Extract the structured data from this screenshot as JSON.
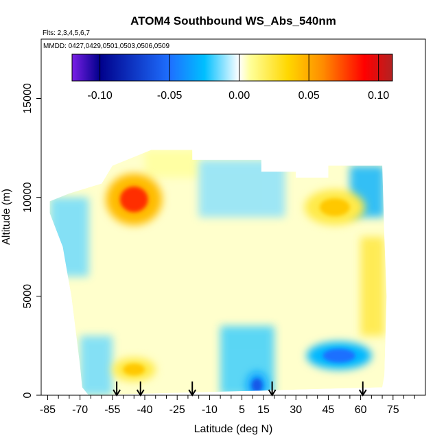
{
  "chart_data": {
    "type": "heatmap",
    "title": "ATOM4 Southbound WS_Abs_540nm",
    "subtitle_flights": "Flts: 2,3,4,5,6,7",
    "subtitle_dates": "MMDD: 0427,0429,0501,0503,0506,0509",
    "xlabel": "Latitude (deg N)",
    "ylabel": "Altitude (m)",
    "xlim": [
      -88,
      90
    ],
    "ylim": [
      0,
      18000
    ],
    "x_ticks": [
      -85,
      -70,
      -55,
      -40,
      -25,
      -10,
      5,
      15,
      30,
      45,
      60,
      75
    ],
    "x_tick_labels": [
      "-85",
      "-70",
      "-55",
      "-40",
      "-25",
      "-10",
      "5",
      "15",
      "30",
      "45",
      "60",
      "75"
    ],
    "y_ticks": [
      0,
      5000,
      10000,
      15000
    ],
    "y_tick_labels": [
      "0",
      "5000",
      "10000",
      "15000"
    ],
    "colorbar": {
      "range": [
        -0.12,
        0.11
      ],
      "ticks": [
        -0.1,
        -0.05,
        0.0,
        0.05,
        0.1
      ],
      "tick_labels": [
        "-0.10",
        "-0.05",
        "0.00",
        "0.05",
        "0.10"
      ],
      "colors": [
        "#7a1fe6",
        "#00008b",
        "#1e6fff",
        "#00bfff",
        "#ffffff",
        "#ffff99",
        "#ffd700",
        "#ff8c00",
        "#ff0000",
        "#b22222"
      ]
    },
    "arrow_latitudes": [
      -53,
      -42,
      -18,
      19,
      61
    ],
    "domain_polygon": [
      [
        -84,
        9800
      ],
      [
        -75,
        10200
      ],
      [
        -60,
        10700
      ],
      [
        -55,
        11600
      ],
      [
        -37,
        12400
      ],
      [
        -18,
        12400
      ],
      [
        -18,
        11900
      ],
      [
        14,
        11900
      ],
      [
        14,
        11300
      ],
      [
        30,
        11300
      ],
      [
        30,
        11000
      ],
      [
        45,
        11000
      ],
      [
        45,
        11600
      ],
      [
        70,
        11600
      ],
      [
        71,
        8000
      ],
      [
        72,
        5000
      ],
      [
        71,
        1000
      ],
      [
        70,
        400
      ],
      [
        -66,
        0
      ],
      [
        -69,
        400
      ],
      [
        -70,
        1500
      ],
      [
        -74,
        5000
      ],
      [
        -78,
        7500
      ],
      [
        -84,
        9200
      ]
    ],
    "features": [
      {
        "name": "southern-upper-plume",
        "lat": -45,
        "alt": 9900,
        "value": 0.08
      },
      {
        "name": "northern-upper-band",
        "lat": 48,
        "alt": 9500,
        "value": 0.04
      },
      {
        "name": "northern-lower-negative",
        "lat": 50,
        "alt": 2000,
        "value": -0.05
      },
      {
        "name": "tropical-surface-negative",
        "lat": 12,
        "alt": 500,
        "value": -0.06
      },
      {
        "name": "southern-lower-band",
        "lat": -45,
        "alt": 1300,
        "value": 0.04
      }
    ]
  }
}
